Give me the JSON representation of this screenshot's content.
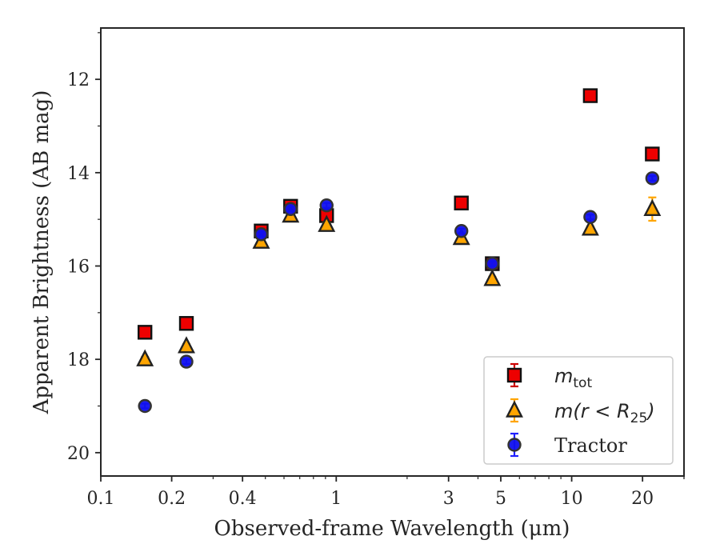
{
  "chart_data": {
    "type": "scatter",
    "xlabel": "Observed-frame Wavelength (μm)",
    "ylabel": "Apparent Brightness (AB mag)",
    "xscale": "log",
    "xlim": [
      0.1,
      30
    ],
    "ylim": [
      20.5,
      10.9
    ],
    "y_inverted": true,
    "grid": false,
    "legend_position": "bottom-right",
    "x_ticks": [
      {
        "value": 0.1,
        "label": "0.1"
      },
      {
        "value": 0.2,
        "label": "0.2"
      },
      {
        "value": 0.4,
        "label": "0.4"
      },
      {
        "value": 1,
        "label": "1"
      },
      {
        "value": 3,
        "label": "3"
      },
      {
        "value": 5,
        "label": "5"
      },
      {
        "value": 10,
        "label": "10"
      },
      {
        "value": 20,
        "label": "20"
      }
    ],
    "y_ticks": [
      {
        "value": 12,
        "label": "12"
      },
      {
        "value": 14,
        "label": "14"
      },
      {
        "value": 16,
        "label": "16"
      },
      {
        "value": 18,
        "label": "18"
      },
      {
        "value": 20,
        "label": "20"
      }
    ],
    "series": [
      {
        "name": "m_tot",
        "legend_main": "m",
        "legend_sub": "tot",
        "marker": "square",
        "color": "#ee0000",
        "errorbar_color": "#cc0000",
        "points": [
          {
            "x": 0.154,
            "y": 17.42,
            "err": 0.05
          },
          {
            "x": 0.231,
            "y": 17.23,
            "err": 0.05
          },
          {
            "x": 0.48,
            "y": 15.25,
            "err": 0.1
          },
          {
            "x": 0.64,
            "y": 14.72,
            "err": 0.1
          },
          {
            "x": 0.91,
            "y": 14.92,
            "err": 0.1
          },
          {
            "x": 3.4,
            "y": 14.65,
            "err": 0.05
          },
          {
            "x": 4.6,
            "y": 15.95,
            "err": 0.05
          },
          {
            "x": 12.0,
            "y": 12.35,
            "err": 0.05
          },
          {
            "x": 22.0,
            "y": 13.6,
            "err": 0.05
          }
        ]
      },
      {
        "name": "m(r < R25)",
        "legend_main": "m(r < R",
        "legend_sub": "25",
        "legend_tail": ")",
        "marker": "triangle",
        "color": "#ffa500",
        "errorbar_color": "#ffa500",
        "points": [
          {
            "x": 0.154,
            "y": 18.0,
            "err": 0.05
          },
          {
            "x": 0.231,
            "y": 17.72,
            "err": 0.05
          },
          {
            "x": 0.48,
            "y": 15.48,
            "err": 0.05
          },
          {
            "x": 0.64,
            "y": 14.92,
            "err": 0.05
          },
          {
            "x": 0.91,
            "y": 15.12,
            "err": 0.05
          },
          {
            "x": 3.4,
            "y": 15.4,
            "err": 0.05
          },
          {
            "x": 4.6,
            "y": 16.28,
            "err": 0.05
          },
          {
            "x": 12.0,
            "y": 15.2,
            "err": 0.05
          },
          {
            "x": 22.0,
            "y": 14.78,
            "err": 0.25
          }
        ]
      },
      {
        "name": "Tractor",
        "legend_main": "Tractor",
        "marker": "circle",
        "color": "#1010ee",
        "errorbar_color": "#2020ff",
        "points": [
          {
            "x": 0.154,
            "y": 19.0,
            "err": 0.05
          },
          {
            "x": 0.231,
            "y": 18.05,
            "err": 0.05
          },
          {
            "x": 0.48,
            "y": 15.32,
            "err": 0.05
          },
          {
            "x": 0.64,
            "y": 14.78,
            "err": 0.05
          },
          {
            "x": 0.91,
            "y": 14.7,
            "err": 0.05
          },
          {
            "x": 3.4,
            "y": 15.25,
            "err": 0.05
          },
          {
            "x": 4.6,
            "y": 15.95,
            "err": 0.05
          },
          {
            "x": 12.0,
            "y": 14.95,
            "err": 0.05
          },
          {
            "x": 22.0,
            "y": 14.12,
            "err": 0.05
          }
        ]
      }
    ]
  }
}
